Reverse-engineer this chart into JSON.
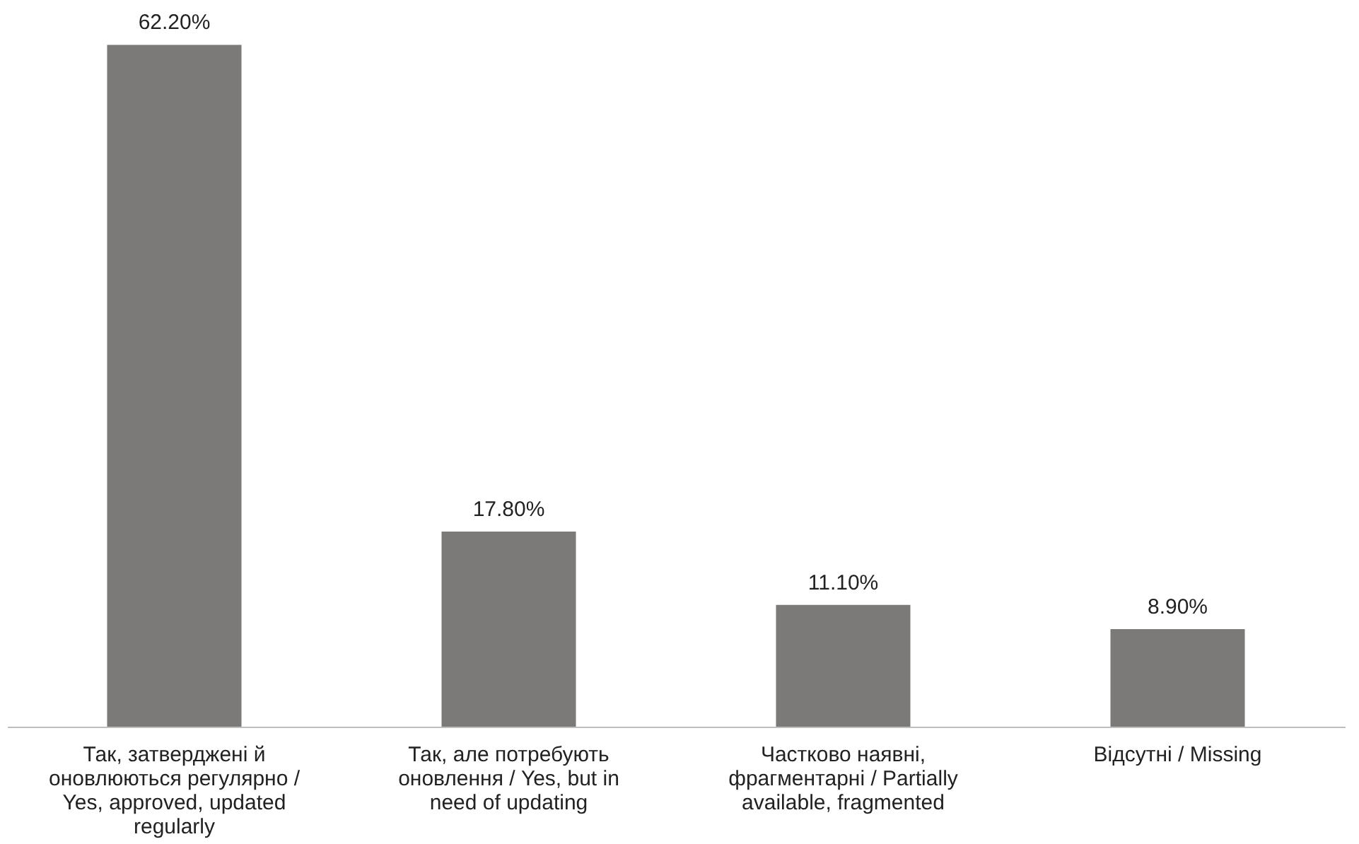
{
  "chart_data": {
    "type": "bar",
    "categories": [
      "Так, затверджені й оновлюються регулярно / Yes, approved, updated regularly",
      "Так, але потребують оновлення / Yes, but in need of updating",
      "Частково наявні, фрагментарні / Partially available, fragmented",
      "Відсутні / Missing"
    ],
    "values": [
      62.2,
      17.8,
      11.1,
      8.9
    ],
    "value_labels": [
      "62.20%",
      "17.80%",
      "11.10%",
      "8.90%"
    ],
    "color": "#7b7a79",
    "tick_labels": "x",
    "grid": false
  }
}
